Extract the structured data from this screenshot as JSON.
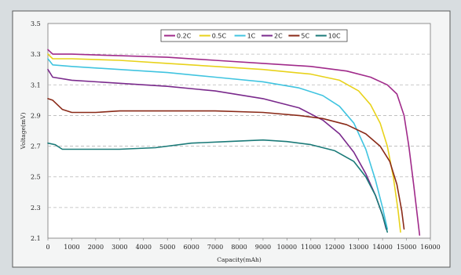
{
  "colors": {
    "background": "#d8dde0",
    "plot_area": "#ffffff",
    "grid": "#b8b8b8",
    "frame": "#5a5a5a"
  },
  "chart_data": {
    "type": "line",
    "title": "",
    "xlabel": "Capacity(mAh)",
    "ylabel": "Voltage(mV)",
    "xlim": [
      0,
      16000
    ],
    "ylim": [
      2.1,
      3.5
    ],
    "x_ticks": [
      "0",
      "1000",
      "2000",
      "3000",
      "4000",
      "5000",
      "6000",
      "7000",
      "8000",
      "9000",
      "10000",
      "11000",
      "12000",
      "13000",
      "14000",
      "15000",
      "16000"
    ],
    "y_ticks": [
      "2.1",
      "2.3",
      "2.5",
      "2.7",
      "2.9",
      "3.1",
      "3.3",
      "3.5"
    ],
    "grid": "horizontal dashed",
    "legend_position": "top-right",
    "series": [
      {
        "name": "0.2C",
        "color": "#a02a8a",
        "points": [
          [
            0,
            3.33
          ],
          [
            200,
            3.3
          ],
          [
            1000,
            3.3
          ],
          [
            3000,
            3.29
          ],
          [
            5000,
            3.28
          ],
          [
            7000,
            3.26
          ],
          [
            9000,
            3.24
          ],
          [
            11000,
            3.22
          ],
          [
            12500,
            3.19
          ],
          [
            13500,
            3.15
          ],
          [
            14200,
            3.1
          ],
          [
            14600,
            3.04
          ],
          [
            14900,
            2.9
          ],
          [
            15100,
            2.7
          ],
          [
            15300,
            2.45
          ],
          [
            15450,
            2.25
          ],
          [
            15550,
            2.12
          ]
        ]
      },
      {
        "name": "0.5C",
        "color": "#e8d21a",
        "points": [
          [
            0,
            3.3
          ],
          [
            200,
            3.27
          ],
          [
            1000,
            3.27
          ],
          [
            3000,
            3.26
          ],
          [
            5000,
            3.24
          ],
          [
            7000,
            3.22
          ],
          [
            9000,
            3.2
          ],
          [
            11000,
            3.17
          ],
          [
            12200,
            3.13
          ],
          [
            13000,
            3.06
          ],
          [
            13500,
            2.97
          ],
          [
            13900,
            2.85
          ],
          [
            14200,
            2.7
          ],
          [
            14450,
            2.5
          ],
          [
            14650,
            2.28
          ],
          [
            14750,
            2.14
          ]
        ]
      },
      {
        "name": "1C",
        "color": "#40c4e0",
        "points": [
          [
            0,
            3.27
          ],
          [
            200,
            3.23
          ],
          [
            1000,
            3.22
          ],
          [
            3000,
            3.2
          ],
          [
            5000,
            3.18
          ],
          [
            7000,
            3.15
          ],
          [
            9000,
            3.12
          ],
          [
            10500,
            3.08
          ],
          [
            11500,
            3.03
          ],
          [
            12200,
            2.96
          ],
          [
            12800,
            2.85
          ],
          [
            13300,
            2.68
          ],
          [
            13700,
            2.48
          ],
          [
            14000,
            2.3
          ],
          [
            14200,
            2.16
          ]
        ]
      },
      {
        "name": "2C",
        "color": "#7a2a8c",
        "points": [
          [
            0,
            3.2
          ],
          [
            200,
            3.15
          ],
          [
            1000,
            3.13
          ],
          [
            3000,
            3.11
          ],
          [
            5000,
            3.09
          ],
          [
            7000,
            3.06
          ],
          [
            9000,
            3.01
          ],
          [
            10500,
            2.95
          ],
          [
            11500,
            2.87
          ],
          [
            12200,
            2.78
          ],
          [
            12800,
            2.66
          ],
          [
            13300,
            2.52
          ],
          [
            13700,
            2.38
          ],
          [
            14000,
            2.25
          ],
          [
            14150,
            2.16
          ]
        ]
      },
      {
        "name": "5C",
        "color": "#8a2a18",
        "points": [
          [
            0,
            3.01
          ],
          [
            200,
            3.0
          ],
          [
            600,
            2.94
          ],
          [
            1000,
            2.92
          ],
          [
            2000,
            2.92
          ],
          [
            3000,
            2.93
          ],
          [
            5000,
            2.93
          ],
          [
            7000,
            2.93
          ],
          [
            9000,
            2.92
          ],
          [
            10500,
            2.9
          ],
          [
            11500,
            2.88
          ],
          [
            12500,
            2.84
          ],
          [
            13300,
            2.78
          ],
          [
            13900,
            2.7
          ],
          [
            14300,
            2.6
          ],
          [
            14600,
            2.45
          ],
          [
            14800,
            2.28
          ],
          [
            14900,
            2.16
          ]
        ]
      },
      {
        "name": "10C",
        "color": "#1a7a78",
        "points": [
          [
            0,
            2.72
          ],
          [
            300,
            2.71
          ],
          [
            600,
            2.68
          ],
          [
            1000,
            2.68
          ],
          [
            3000,
            2.68
          ],
          [
            4500,
            2.69
          ],
          [
            6000,
            2.72
          ],
          [
            7500,
            2.73
          ],
          [
            9000,
            2.74
          ],
          [
            10000,
            2.73
          ],
          [
            11000,
            2.71
          ],
          [
            12000,
            2.67
          ],
          [
            12800,
            2.6
          ],
          [
            13300,
            2.5
          ],
          [
            13700,
            2.38
          ],
          [
            14000,
            2.25
          ],
          [
            14200,
            2.14
          ]
        ]
      }
    ]
  }
}
